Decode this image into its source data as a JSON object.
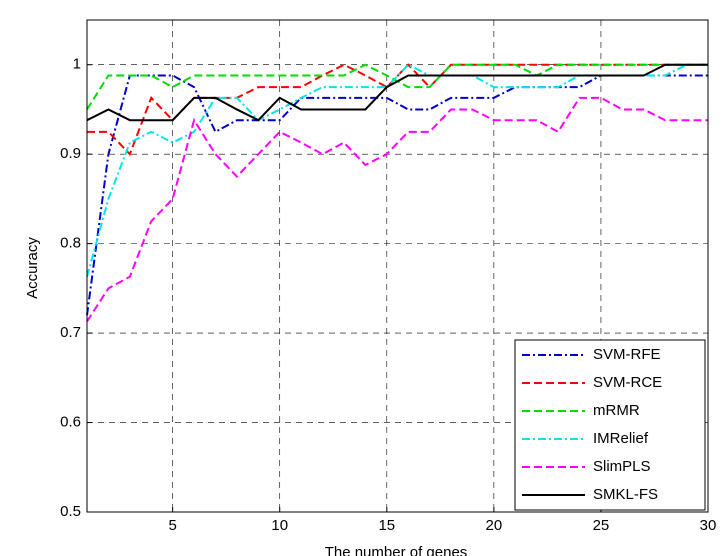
{
  "chart_data": {
    "type": "line",
    "xlabel": "The number of genes",
    "ylabel": "Accuracy",
    "x": [
      1,
      2,
      3,
      4,
      5,
      6,
      7,
      8,
      9,
      10,
      11,
      12,
      13,
      14,
      15,
      16,
      17,
      18,
      19,
      20,
      21,
      22,
      23,
      24,
      25,
      26,
      27,
      28,
      29,
      30
    ],
    "xlim": [
      1,
      30
    ],
    "xticks": [
      5,
      10,
      15,
      20,
      25,
      30
    ],
    "ylim": [
      0.5,
      1.05
    ],
    "yticks": [
      0.5,
      0.6,
      0.7,
      0.8,
      0.9,
      1
    ],
    "grid": true,
    "legend": "lower right",
    "series": [
      {
        "name": "SVM-RFE",
        "color": "#0000cc",
        "linestyle": "-.",
        "values": [
          0.72,
          0.9,
          0.988,
          0.988,
          0.988,
          0.975,
          0.925,
          0.938,
          0.938,
          0.938,
          0.963,
          0.963,
          0.963,
          0.963,
          0.963,
          0.95,
          0.95,
          0.963,
          0.963,
          0.963,
          0.975,
          0.975,
          0.975,
          0.975,
          0.988,
          0.988,
          0.988,
          0.988,
          0.988,
          0.988
        ]
      },
      {
        "name": "SVM-RCE",
        "color": "#ff0000",
        "linestyle": "--",
        "values": [
          0.925,
          0.925,
          0.9,
          0.963,
          0.938,
          0.963,
          0.963,
          0.963,
          0.975,
          0.975,
          0.975,
          0.988,
          1.0,
          0.988,
          0.975,
          1.0,
          0.975,
          1,
          1,
          1,
          1,
          1,
          1,
          1,
          1,
          1,
          1,
          1,
          1,
          1
        ]
      },
      {
        "name": "mRMR",
        "color": "#00dd00",
        "linestyle": "--",
        "values": [
          0.95,
          0.988,
          0.988,
          0.988,
          0.975,
          0.988,
          0.988,
          0.988,
          0.988,
          0.988,
          0.988,
          0.988,
          0.988,
          1.0,
          0.988,
          0.975,
          0.975,
          1,
          1,
          1,
          1,
          0.988,
          1,
          1,
          1,
          1,
          1,
          1,
          1,
          1
        ]
      },
      {
        "name": "IMRelief",
        "color": "#00e5ee",
        "linestyle": "-.",
        "values": [
          0.763,
          0.85,
          0.913,
          0.925,
          0.913,
          0.925,
          0.963,
          0.963,
          0.938,
          0.95,
          0.963,
          0.975,
          0.975,
          0.975,
          0.975,
          1.0,
          0.988,
          0.988,
          0.988,
          0.975,
          0.975,
          0.975,
          0.975,
          0.988,
          0.988,
          0.988,
          0.988,
          0.988,
          1,
          1
        ]
      },
      {
        "name": "SlimPLS",
        "color": "#ff00ff",
        "linestyle": "--",
        "values": [
          0.713,
          0.75,
          0.763,
          0.825,
          0.85,
          0.938,
          0.9,
          0.875,
          0.9,
          0.925,
          0.913,
          0.9,
          0.913,
          0.888,
          0.9,
          0.925,
          0.925,
          0.95,
          0.95,
          0.938,
          0.938,
          0.938,
          0.925,
          0.963,
          0.963,
          0.95,
          0.95,
          0.938,
          0.938,
          0.938
        ]
      },
      {
        "name": "SMKL-FS",
        "color": "#000000",
        "linestyle": "-",
        "values": [
          0.938,
          0.95,
          0.938,
          0.938,
          0.938,
          0.963,
          0.963,
          0.95,
          0.938,
          0.963,
          0.95,
          0.95,
          0.95,
          0.95,
          0.975,
          0.988,
          0.988,
          0.988,
          0.988,
          0.988,
          0.988,
          0.988,
          0.988,
          0.988,
          0.988,
          0.988,
          0.988,
          1,
          1,
          1
        ]
      }
    ]
  }
}
